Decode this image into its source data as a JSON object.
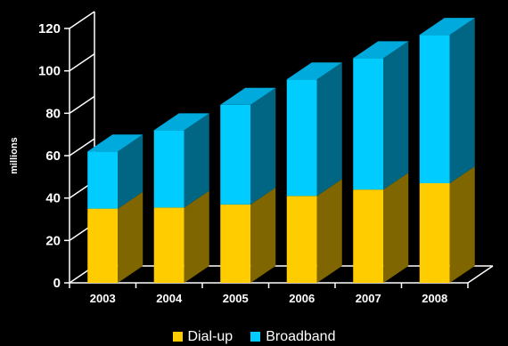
{
  "chart_data": {
    "type": "bar",
    "stacked": true,
    "three_d": true,
    "categories": [
      "2003",
      "2004",
      "2005",
      "2006",
      "2007",
      "2008"
    ],
    "series": [
      {
        "name": "Dial-up",
        "values": [
          35,
          35.5,
          37,
          41,
          44,
          47
        ]
      },
      {
        "name": "Broadband",
        "values": [
          27,
          36.5,
          47,
          55,
          62,
          70
        ]
      }
    ],
    "ylabel": "millions",
    "ylim": [
      0,
      120
    ],
    "yticks": [
      "0",
      "20",
      "40",
      "60",
      "80",
      "100",
      "120"
    ],
    "legend_position": "bottom",
    "grid": false
  },
  "colors": {
    "background": "#000000",
    "dialup_front": "#FFCC00",
    "dialup_side": "#7F6600",
    "dialup_top": "#E6B800",
    "broadband_front": "#00CCFF",
    "broadband_side": "#006683",
    "broadband_top": "#00AADD",
    "axis": "#FFFFFF"
  }
}
